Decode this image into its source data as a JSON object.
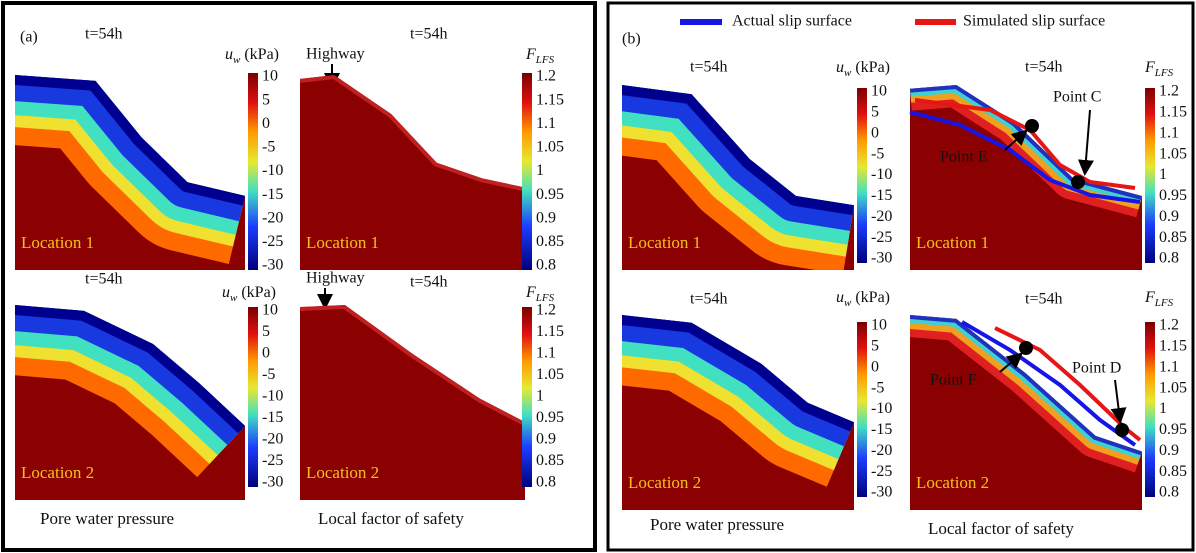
{
  "panel_a": {
    "label": "(a)",
    "highway": "Highway",
    "plots": [
      {
        "time": "t=54h",
        "location": "Location 1"
      },
      {
        "time": "t=54h",
        "location": "Location 1"
      },
      {
        "time": "t=54h",
        "location": "Location 2"
      },
      {
        "time": "t=54h",
        "location": "Location 2"
      }
    ],
    "captions": [
      "Pore water pressure",
      "Local factor of safety"
    ]
  },
  "panel_b": {
    "label": "(b)",
    "legend": [
      {
        "name": "Actual slip surface",
        "color": "#1515e8"
      },
      {
        "name": "Simulated slip surface",
        "color": "#e81515"
      }
    ],
    "plots": [
      {
        "time": "t=54h",
        "location": "Location 1"
      },
      {
        "time": "t=54h",
        "location": "Location 1"
      },
      {
        "time": "t=54h",
        "location": "Location 2"
      },
      {
        "time": "t=54h",
        "location": "Location 2"
      }
    ],
    "points": [
      "Point C",
      "Point E",
      "Point D",
      "Point F"
    ],
    "captions": [
      "Pore water pressure",
      "Local factor of safety"
    ]
  },
  "colorbars": {
    "pwp": {
      "symbol": "u",
      "subscript": "w",
      "unit": "(kPa)",
      "ticks": [
        10,
        5,
        0,
        -5,
        -10,
        -15,
        -20,
        -25,
        -30
      ]
    },
    "fs": {
      "symbol": "F",
      "subscript": "LFS",
      "ticks": [
        1.2,
        1.15,
        1.1,
        1.05,
        1,
        0.95,
        0.9,
        0.85,
        0.8
      ]
    }
  }
}
